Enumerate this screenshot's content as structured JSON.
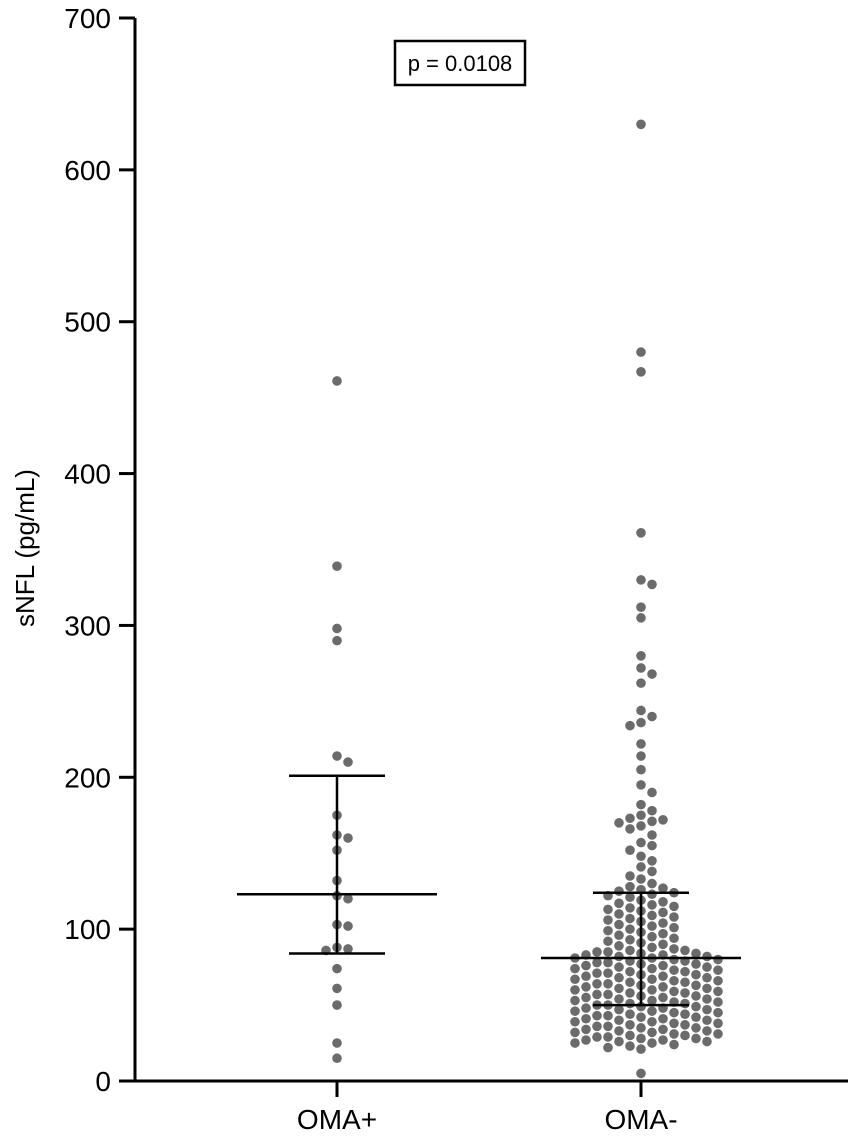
{
  "chart_data": {
    "type": "scatter",
    "ylabel": "sNFL (pg/mL)",
    "xlabel": "",
    "ylim": [
      0,
      700
    ],
    "yticks": [
      0,
      100,
      200,
      300,
      400,
      500,
      600,
      700
    ],
    "categories": [
      "OMA+",
      "OMA-"
    ],
    "annotation": "p = 0.0108",
    "grid": false,
    "point_color": "#6b6b6b",
    "series": [
      {
        "category": "OMA+",
        "summary": {
          "median": 123,
          "q1": 84,
          "q3": 201
        },
        "values": [
          461,
          339,
          298,
          290,
          214,
          210,
          175,
          162,
          160,
          152,
          132,
          122,
          120,
          103,
          102,
          88,
          87,
          86,
          74,
          61,
          50,
          25,
          15
        ]
      },
      {
        "category": "OMA-",
        "summary": {
          "median": 81,
          "q1": 50,
          "q3": 124
        },
        "values": [
          630,
          480,
          467,
          361,
          330,
          327,
          312,
          305,
          280,
          272,
          268,
          262,
          244,
          240,
          236,
          234,
          222,
          214,
          205,
          195,
          190,
          182,
          178,
          175,
          173,
          172,
          171,
          170,
          168,
          166,
          162,
          157,
          155,
          152,
          148,
          145,
          141,
          138,
          135,
          133,
          130,
          128,
          127,
          126,
          125,
          124,
          123,
          122,
          121,
          119,
          118,
          117,
          116,
          115,
          114,
          113,
          112,
          111,
          110,
          109,
          108,
          107,
          106,
          105,
          104,
          103,
          102,
          101,
          100,
          99,
          98,
          97,
          96,
          95,
          94,
          93,
          92,
          91,
          90,
          89,
          88,
          87,
          86,
          86,
          85,
          85,
          84,
          84,
          83,
          83,
          82,
          82,
          81,
          81,
          80,
          80,
          79,
          79,
          78,
          78,
          77,
          77,
          76,
          76,
          75,
          75,
          74,
          74,
          73,
          73,
          72,
          72,
          71,
          71,
          70,
          70,
          69,
          69,
          68,
          68,
          67,
          67,
          66,
          66,
          65,
          65,
          64,
          64,
          63,
          63,
          62,
          62,
          61,
          61,
          60,
          60,
          59,
          59,
          58,
          58,
          57,
          57,
          56,
          56,
          55,
          55,
          54,
          54,
          53,
          53,
          52,
          52,
          51,
          51,
          50,
          50,
          49,
          49,
          48,
          48,
          47,
          47,
          46,
          46,
          45,
          45,
          44,
          44,
          43,
          43,
          42,
          42,
          41,
          41,
          40,
          40,
          39,
          39,
          38,
          38,
          37,
          37,
          36,
          36,
          35,
          35,
          34,
          34,
          33,
          33,
          32,
          32,
          31,
          31,
          30,
          30,
          29,
          29,
          28,
          28,
          27,
          27,
          26,
          26,
          25,
          25,
          24,
          23,
          22,
          21,
          5
        ]
      }
    ]
  }
}
